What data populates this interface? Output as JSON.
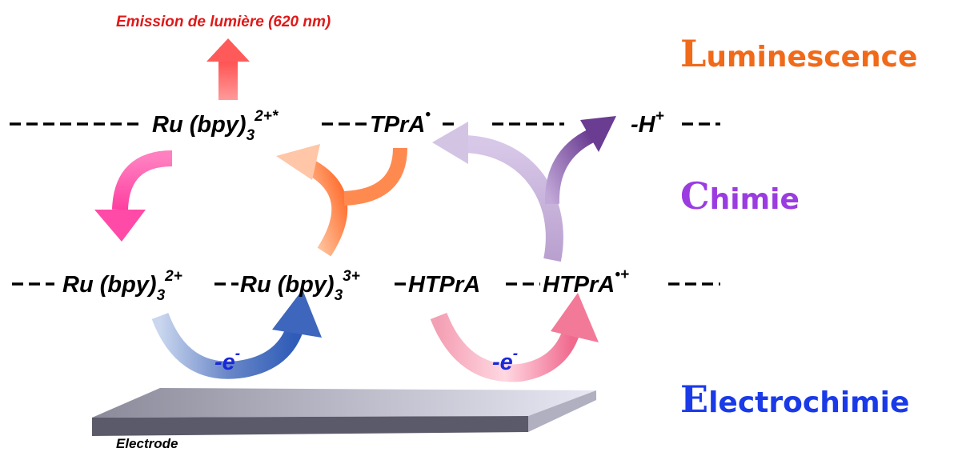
{
  "emission": "Emission de lumière (620 nm)",
  "domains": [
    "Luminescence",
    "Chimie",
    "Electrochimie"
  ],
  "top_row": [
    {
      "text": "Ru (bpy)",
      "sub": "3",
      "sup": "2+*"
    },
    {
      "text": "TPrA",
      "sup": "•"
    },
    {
      "text": "-H",
      "sup": "+"
    }
  ],
  "bottom_row": [
    {
      "text": "Ru (bpy)",
      "sub": "3",
      "sup": "2+"
    },
    {
      "text": "Ru (bpy)",
      "sub": "3",
      "sup": "3+"
    },
    {
      "text": "HTPrA"
    },
    {
      "text": "HTPrA",
      "sup": "•+"
    }
  ],
  "electrons": [
    {
      "text": "-e",
      "sup": "-"
    },
    {
      "text": "-e",
      "sup": "-"
    }
  ],
  "electrode": "Electrode"
}
